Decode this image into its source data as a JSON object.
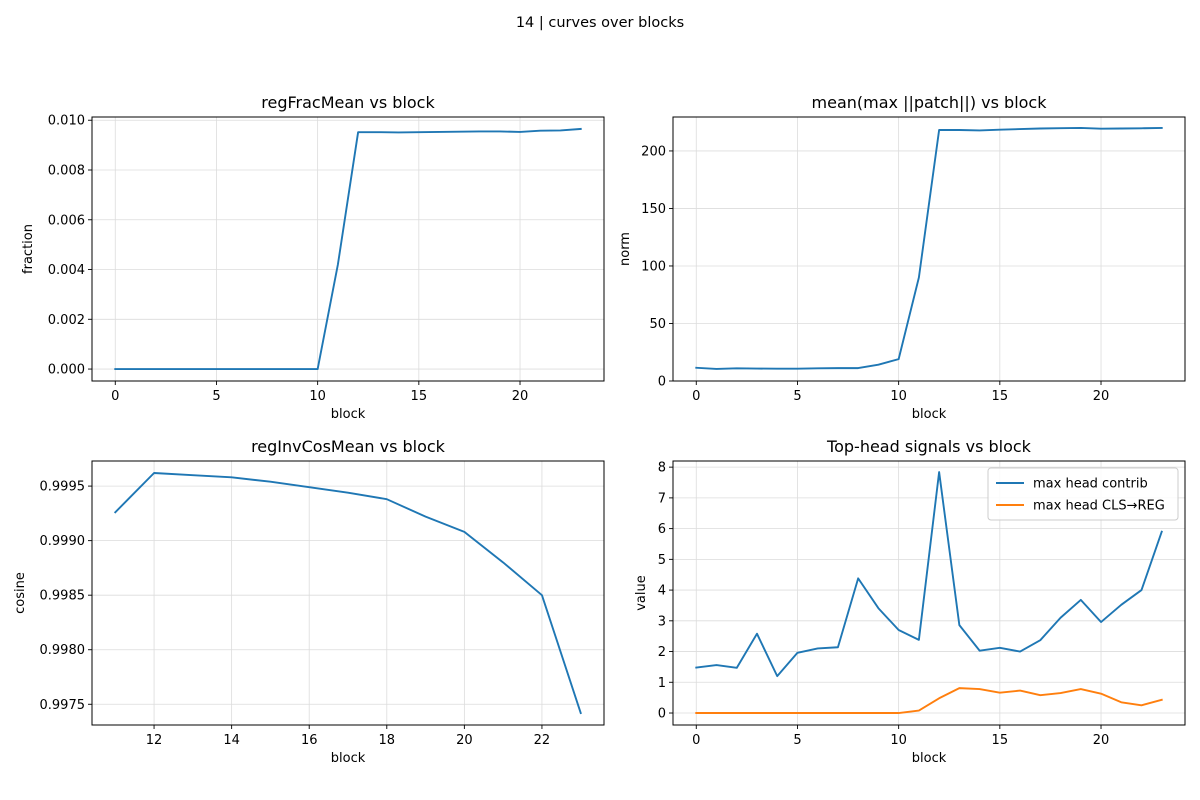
{
  "suptitle": "14 | curves over blocks",
  "chart_data": [
    {
      "type": "line",
      "title": "regFracMean vs block",
      "xlabel": "block",
      "ylabel": "fraction",
      "xlim": [
        -1.15,
        24.15
      ],
      "ylim": [
        -0.00048,
        0.01013
      ],
      "xticks": [
        0,
        5,
        10,
        15,
        20
      ],
      "xtick_labels": [
        "0",
        "5",
        "10",
        "15",
        "20"
      ],
      "yticks": [
        0,
        0.002,
        0.004,
        0.006,
        0.008,
        0.01
      ],
      "ytick_labels": [
        "0.000",
        "0.002",
        "0.004",
        "0.006",
        "0.008",
        "0.010"
      ],
      "grid": true,
      "legend": false,
      "series": [
        {
          "name": "regFracMean",
          "color": "#1f77b4",
          "x": [
            0,
            1,
            2,
            3,
            4,
            5,
            6,
            7,
            8,
            9,
            10,
            11,
            12,
            13,
            14,
            15,
            16,
            17,
            18,
            19,
            20,
            21,
            22,
            23
          ],
          "y": [
            0,
            0,
            0,
            0,
            0,
            0,
            0,
            0,
            0,
            0,
            0,
            0.0042,
            0.00952,
            0.00952,
            0.00951,
            0.00952,
            0.00953,
            0.00954,
            0.00955,
            0.00955,
            0.00953,
            0.00958,
            0.00959,
            0.00965
          ]
        }
      ]
    },
    {
      "type": "line",
      "title": "mean(max ||patch||) vs block",
      "xlabel": "block",
      "ylabel": "norm",
      "xlim": [
        -1.15,
        24.15
      ],
      "ylim": [
        0,
        229.5
      ],
      "xticks": [
        0,
        5,
        10,
        15,
        20
      ],
      "xtick_labels": [
        "0",
        "5",
        "10",
        "15",
        "20"
      ],
      "yticks": [
        0,
        50,
        100,
        150,
        200
      ],
      "ytick_labels": [
        "0",
        "50",
        "100",
        "150",
        "200"
      ],
      "grid": true,
      "legend": false,
      "series": [
        {
          "name": "mean(max ||patch||)",
          "color": "#1f77b4",
          "x": [
            0,
            1,
            2,
            3,
            4,
            5,
            6,
            7,
            8,
            9,
            10,
            11,
            12,
            13,
            14,
            15,
            16,
            17,
            18,
            19,
            20,
            21,
            22,
            23
          ],
          "y": [
            11.5,
            10.5,
            11,
            10.8,
            10.7,
            10.7,
            11,
            11.2,
            11.2,
            14.2,
            19,
            90,
            218.2,
            218.2,
            217.8,
            218.5,
            219,
            219.5,
            219.8,
            220,
            219.3,
            219.5,
            219.7,
            220
          ]
        }
      ]
    },
    {
      "type": "line",
      "title": "regInvCosMean vs block",
      "xlabel": "block",
      "ylabel": "cosine",
      "xlim": [
        10.4,
        23.6
      ],
      "ylim": [
        0.99731,
        0.99973
      ],
      "xticks": [
        12,
        14,
        16,
        18,
        20,
        22
      ],
      "xtick_labels": [
        "12",
        "14",
        "16",
        "18",
        "20",
        "22"
      ],
      "yticks": [
        0.9975,
        0.998,
        0.9985,
        0.999,
        0.9995
      ],
      "ytick_labels": [
        "0.9975",
        "0.9980",
        "0.9985",
        "0.9990",
        "0.9995"
      ],
      "grid": true,
      "legend": false,
      "series": [
        {
          "name": "regInvCosMean",
          "color": "#1f77b4",
          "x": [
            11,
            12,
            13,
            14,
            15,
            16,
            17,
            18,
            19,
            20,
            21,
            22,
            23
          ],
          "y": [
            0.99926,
            0.99962,
            0.9996,
            0.99958,
            0.99954,
            0.99949,
            0.99944,
            0.99938,
            0.99922,
            0.99908,
            0.9988,
            0.9985,
            0.99742
          ]
        }
      ]
    },
    {
      "type": "line",
      "title": "Top-head signals vs block",
      "xlabel": "block",
      "ylabel": "value",
      "xlim": [
        -1.15,
        24.15
      ],
      "ylim": [
        -0.39,
        8.2
      ],
      "xticks": [
        0,
        5,
        10,
        15,
        20
      ],
      "xtick_labels": [
        "0",
        "5",
        "10",
        "15",
        "20"
      ],
      "yticks": [
        0,
        1,
        2,
        3,
        4,
        5,
        6,
        7,
        8
      ],
      "ytick_labels": [
        "0",
        "1",
        "2",
        "3",
        "4",
        "5",
        "6",
        "7",
        "8"
      ],
      "grid": true,
      "legend": true,
      "legend_loc": "upper right",
      "series": [
        {
          "name": "max head contrib",
          "color": "#1f77b4",
          "x": [
            0,
            1,
            2,
            3,
            4,
            5,
            6,
            7,
            8,
            9,
            10,
            11,
            12,
            13,
            14,
            15,
            16,
            17,
            18,
            19,
            20,
            21,
            22,
            23
          ],
          "y": [
            1.48,
            1.56,
            1.47,
            2.58,
            1.2,
            1.96,
            2.1,
            2.14,
            4.38,
            3.41,
            2.7,
            2.38,
            7.84,
            2.86,
            2.03,
            2.12,
            2.0,
            2.37,
            3.1,
            3.68,
            2.96,
            3.52,
            4.0,
            5.9
          ]
        },
        {
          "name": "max head CLS→REG",
          "color": "#ff7f0e",
          "x": [
            0,
            1,
            2,
            3,
            4,
            5,
            6,
            7,
            8,
            9,
            10,
            11,
            12,
            13,
            14,
            15,
            16,
            17,
            18,
            19,
            20,
            21,
            22,
            23
          ],
          "y": [
            0,
            0,
            0,
            0,
            0,
            0,
            0,
            0,
            0,
            0,
            0,
            0.08,
            0.48,
            0.81,
            0.78,
            0.66,
            0.73,
            0.58,
            0.65,
            0.78,
            0.63,
            0.35,
            0.25,
            0.43
          ]
        }
      ]
    }
  ]
}
